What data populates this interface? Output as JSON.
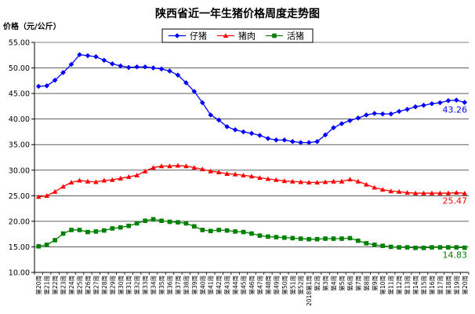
{
  "chart_data": {
    "type": "line",
    "title": "陕西省近一年生猪价格周度走势图",
    "ylabel": "价格（元/公斤）",
    "ylim": [
      10,
      55
    ],
    "yticks": [
      "10.00",
      "15.00",
      "20.00",
      "25.00",
      "30.00",
      "35.00",
      "40.00",
      "45.00",
      "50.00",
      "55.00"
    ],
    "grid": "horizontal",
    "legend_position": "top-center",
    "categories": [
      "第20周",
      "第21周",
      "第22周",
      "第23周",
      "第24周",
      "第25周",
      "第26周",
      "第27周",
      "第28周",
      "第29周",
      "第30周",
      "第31周",
      "第32周",
      "第33周",
      "第34周",
      "第35周",
      "第36周",
      "第37周",
      "第38周",
      "第39周",
      "第40周",
      "第41周",
      "第42周",
      "第43周",
      "第44周",
      "第45周",
      "第46周",
      "第47周",
      "第48周",
      "第49周",
      "第50周",
      "第51周",
      "第52周",
      "2018第1周",
      "第2周",
      "第3周",
      "第4周",
      "第5周",
      "第6周",
      "第7周",
      "第8周",
      "第9周",
      "第10周",
      "第11周",
      "第12周",
      "第13周",
      "第14周",
      "第15周",
      "第16周",
      "第17周",
      "第18周",
      "第19周",
      "第20周"
    ],
    "series": [
      {
        "name": "仔猪",
        "color": "#0000ff",
        "marker": "diamond",
        "end_label": "43.26",
        "values": [
          46.4,
          46.5,
          47.6,
          49.1,
          50.7,
          52.6,
          52.4,
          52.2,
          51.5,
          50.8,
          50.4,
          50.1,
          50.2,
          50.2,
          50.0,
          49.8,
          49.4,
          48.6,
          47.1,
          45.4,
          43.2,
          40.8,
          39.8,
          38.5,
          37.9,
          37.5,
          37.2,
          36.8,
          36.2,
          35.9,
          35.9,
          35.6,
          35.4,
          35.4,
          35.6,
          36.9,
          38.3,
          39.1,
          39.7,
          40.2,
          40.8,
          41.1,
          41.0,
          41.0,
          41.5,
          41.9,
          42.4,
          42.7,
          43.0,
          43.2,
          43.6,
          43.7,
          43.26
        ]
      },
      {
        "name": "猪肉",
        "color": "#ff0000",
        "marker": "triangle",
        "end_label": "25.47",
        "values": [
          24.8,
          25.0,
          25.8,
          26.8,
          27.6,
          28.0,
          27.8,
          27.7,
          28.0,
          28.1,
          28.4,
          28.7,
          29.0,
          29.8,
          30.5,
          30.8,
          30.8,
          30.9,
          30.8,
          30.5,
          30.2,
          29.8,
          29.6,
          29.3,
          29.2,
          29.0,
          28.8,
          28.5,
          28.3,
          28.1,
          27.9,
          27.8,
          27.7,
          27.6,
          27.6,
          27.7,
          27.8,
          27.8,
          28.2,
          27.8,
          27.2,
          26.6,
          26.2,
          25.9,
          25.8,
          25.6,
          25.5,
          25.5,
          25.5,
          25.5,
          25.5,
          25.6,
          25.47
        ]
      },
      {
        "name": "活猪",
        "color": "#008000",
        "marker": "square",
        "end_label": "14.83",
        "values": [
          15.1,
          15.4,
          16.3,
          17.6,
          18.3,
          18.3,
          17.9,
          18.0,
          18.2,
          18.6,
          18.8,
          19.1,
          19.6,
          20.1,
          20.4,
          20.1,
          19.9,
          19.8,
          19.6,
          19.0,
          18.3,
          18.1,
          18.3,
          18.2,
          18.0,
          17.9,
          17.6,
          17.2,
          17.0,
          16.9,
          16.8,
          16.7,
          16.6,
          16.5,
          16.5,
          16.6,
          16.6,
          16.6,
          16.7,
          16.2,
          15.7,
          15.4,
          15.2,
          15.0,
          14.9,
          14.9,
          14.8,
          14.8,
          14.9,
          14.9,
          14.9,
          14.9,
          14.83
        ]
      }
    ]
  }
}
